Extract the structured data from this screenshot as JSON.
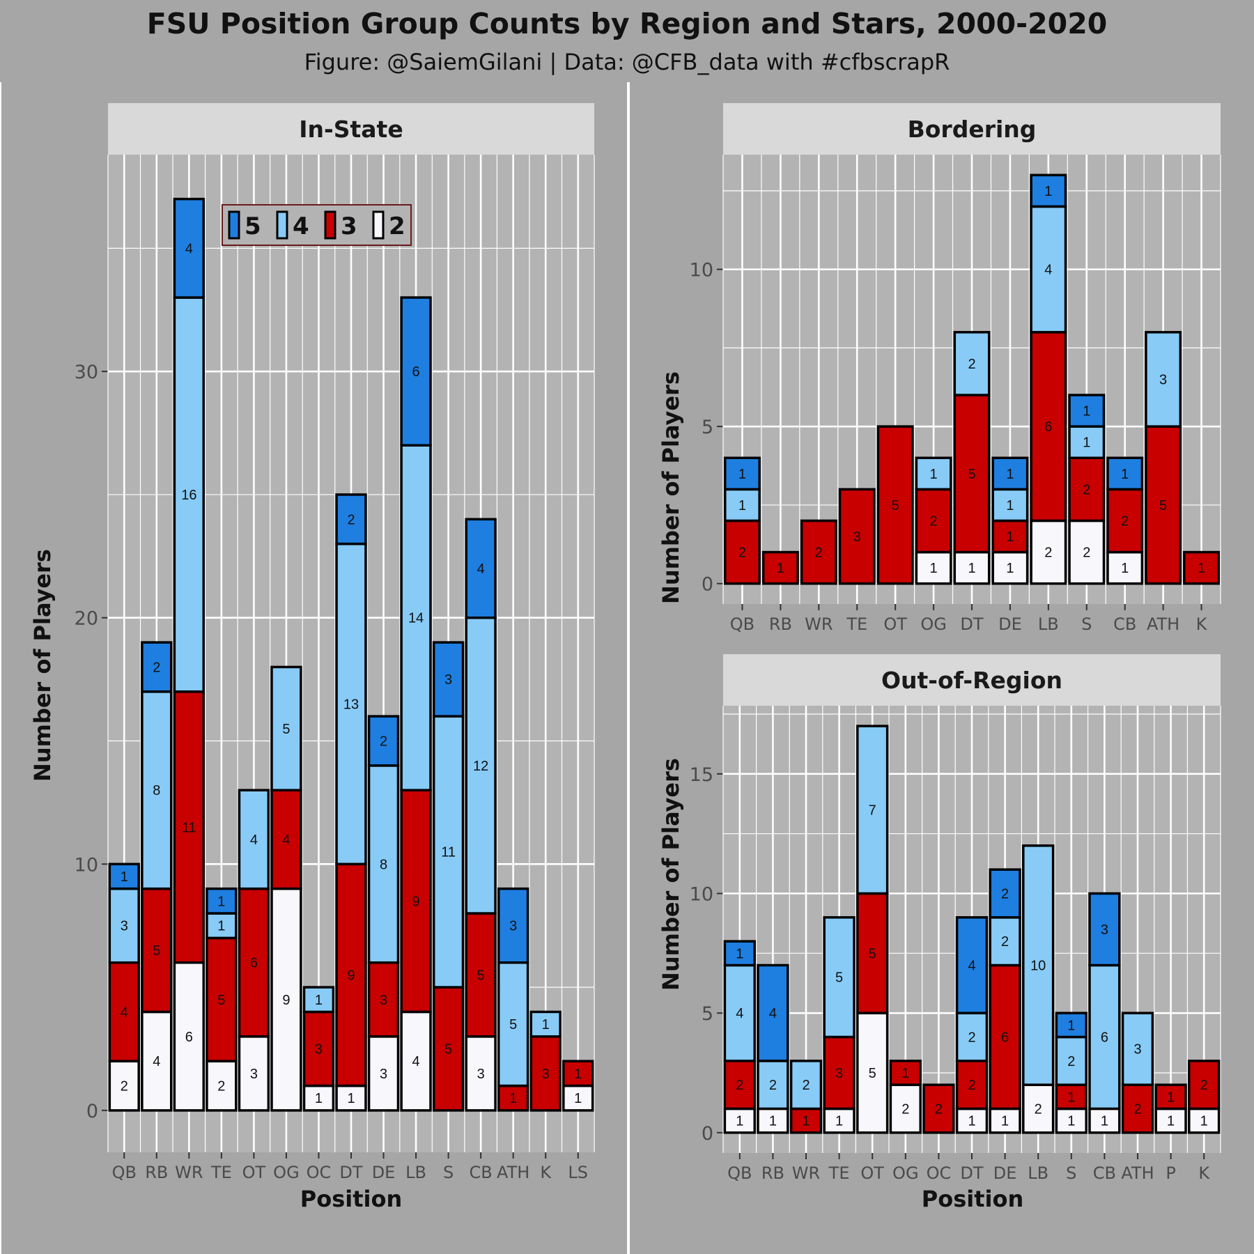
{
  "title": "FSU Position Group Counts by Region and Stars, 2000-2020",
  "subtitle": "Figure: @SaiemGilani | Data: @CFB_data with #cfbscrapR",
  "colors": {
    "background": "#a6a6a6",
    "panel": "#b3b3b3",
    "strip": "#d9d9d9",
    "grid": "#ffffff",
    "star5": "#1e7fe0",
    "star4": "#88cbf7",
    "star3": "#c80000",
    "star2": "#f7f7fc"
  },
  "legend": {
    "placement": "top-left inside In-State panel",
    "entries": [
      "5",
      "4",
      "3",
      "2"
    ]
  },
  "chart_data": [
    {
      "type": "bar",
      "stacked": true,
      "facet": "In-State",
      "xlabel": "Position",
      "ylabel": "Number of Players",
      "ylim": [
        -1.7,
        38.8
      ],
      "yticks": [
        0,
        10,
        20,
        30
      ],
      "grid": true,
      "categories": [
        "QB",
        "RB",
        "WR",
        "TE",
        "OT",
        "OG",
        "OC",
        "DT",
        "DE",
        "LB",
        "S",
        "CB",
        "ATH",
        "K",
        "LS"
      ],
      "series": [
        {
          "name": "2",
          "values": [
            2,
            4,
            6,
            2,
            3,
            9,
            1,
            1,
            3,
            4,
            0,
            3,
            0,
            0,
            1
          ]
        },
        {
          "name": "3",
          "values": [
            4,
            5,
            11,
            5,
            6,
            4,
            3,
            9,
            3,
            9,
            5,
            5,
            1,
            3,
            1
          ]
        },
        {
          "name": "4",
          "values": [
            3,
            8,
            16,
            1,
            4,
            5,
            1,
            13,
            8,
            14,
            11,
            12,
            5,
            1,
            0
          ]
        },
        {
          "name": "5",
          "values": [
            1,
            2,
            4,
            1,
            0,
            0,
            0,
            2,
            2,
            6,
            3,
            4,
            3,
            0,
            0
          ]
        }
      ]
    },
    {
      "type": "bar",
      "stacked": true,
      "facet": "Bordering",
      "xlabel": "",
      "ylabel": "Number of Players",
      "ylim": [
        -0.65,
        13.65
      ],
      "yticks": [
        0,
        5,
        10
      ],
      "grid": true,
      "categories": [
        "QB",
        "RB",
        "WR",
        "TE",
        "OT",
        "OG",
        "DT",
        "DE",
        "LB",
        "S",
        "CB",
        "ATH",
        "K"
      ],
      "series": [
        {
          "name": "2",
          "values": [
            0,
            0,
            0,
            0,
            0,
            1,
            1,
            1,
            2,
            2,
            1,
            0,
            0
          ]
        },
        {
          "name": "3",
          "values": [
            2,
            1,
            2,
            3,
            5,
            2,
            5,
            1,
            6,
            2,
            2,
            5,
            1
          ]
        },
        {
          "name": "4",
          "values": [
            1,
            0,
            0,
            0,
            0,
            1,
            2,
            1,
            4,
            1,
            0,
            3,
            0
          ]
        },
        {
          "name": "5",
          "values": [
            1,
            0,
            0,
            0,
            0,
            0,
            0,
            1,
            1,
            1,
            1,
            0,
            0
          ]
        }
      ]
    },
    {
      "type": "bar",
      "stacked": true,
      "facet": "Out-of-Region",
      "xlabel": "Position",
      "ylabel": "Number of Players",
      "ylim": [
        -0.85,
        17.85
      ],
      "yticks": [
        0,
        5,
        10,
        15
      ],
      "grid": true,
      "categories": [
        "QB",
        "RB",
        "WR",
        "TE",
        "OT",
        "OG",
        "OC",
        "DT",
        "DE",
        "LB",
        "S",
        "CB",
        "ATH",
        "P",
        "K"
      ],
      "series": [
        {
          "name": "2",
          "values": [
            1,
            1,
            0,
            1,
            5,
            2,
            0,
            1,
            1,
            2,
            1,
            1,
            0,
            1,
            1
          ]
        },
        {
          "name": "3",
          "values": [
            2,
            0,
            1,
            3,
            5,
            1,
            2,
            2,
            6,
            0,
            1,
            0,
            2,
            1,
            2
          ]
        },
        {
          "name": "4",
          "values": [
            4,
            2,
            2,
            5,
            7,
            0,
            0,
            2,
            2,
            10,
            2,
            6,
            3,
            0,
            0
          ]
        },
        {
          "name": "5",
          "values": [
            1,
            4,
            0,
            0,
            0,
            0,
            0,
            4,
            2,
            0,
            1,
            3,
            0,
            0,
            0
          ]
        }
      ]
    }
  ]
}
